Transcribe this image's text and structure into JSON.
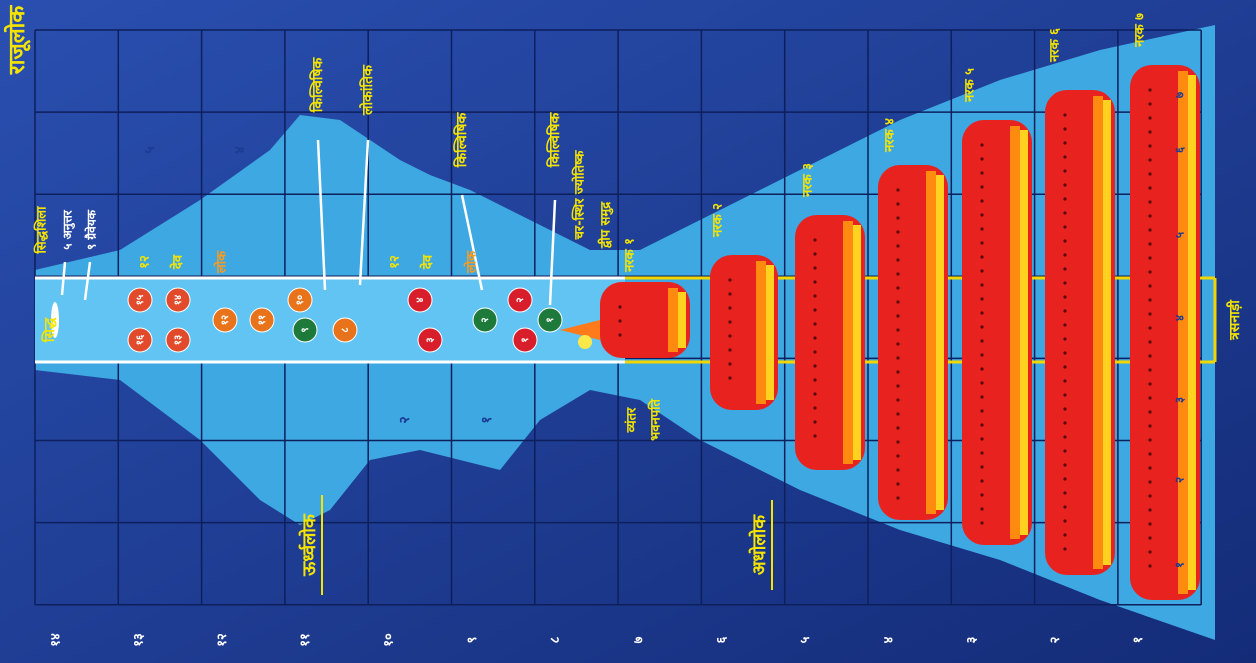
{
  "title": "राजूलोक",
  "rajju_numbers": [
    "१४",
    "१३",
    "१२",
    "११",
    "१०",
    "९",
    "८",
    "७",
    "६",
    "५",
    "४",
    "३",
    "२",
    "१"
  ],
  "column_numbers": [
    "७",
    "६",
    "५",
    "४",
    "३",
    "२",
    "१"
  ],
  "cell_numbers": [
    "५",
    "४",
    "२",
    "१"
  ],
  "regions": {
    "urdhva": "ऊर्ध्वलोक",
    "adho": "अधोलोक",
    "trasnadi": "त्रसनाड़ी"
  },
  "labels": {
    "siddh": "सिद्ध",
    "siddhshila": "सिद्धशिला",
    "anuttar": "५ अनुत्तर",
    "graiveyak": "९ ग्रैवेयक",
    "upper_num": "१२",
    "upper_dev": "देव",
    "upper_lok": "लोक",
    "lower_num": "१२",
    "lower_dev": "देव",
    "lower_lok": "लोक",
    "kilvishik_1": "किल्विषिक",
    "lokantik": "लोकांतिक",
    "kilvishik_2": "किल्विषिक",
    "kilvishik_3": "किल्विषिक",
    "jyotishk": "चर-स्थिर ज्योतिष्क",
    "dweep": "द्वीप समुद्र",
    "vyantar": "व्यंतर",
    "bhavanpati": "भवनपति"
  },
  "naraks": [
    "नरक १",
    "नरक २",
    "नरक ३",
    "नरक ४",
    "नरक ५",
    "नरक ६",
    "नरक ७"
  ],
  "deities": [
    "१५",
    "१६",
    "१४",
    "१३",
    "१२",
    "११",
    "१०",
    "९",
    "८",
    "४",
    "३",
    "२",
    "२",
    "१",
    "१"
  ]
}
